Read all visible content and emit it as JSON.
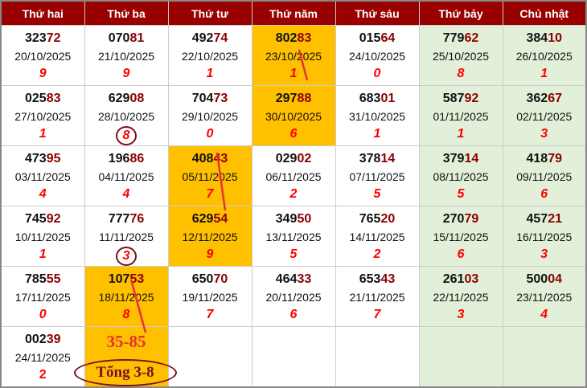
{
  "headers": [
    "Thứ hai",
    "Thứ ba",
    "Thứ tư",
    "Thứ năm",
    "Thứ sáu",
    "Thứ bảy",
    "Chủ nhật"
  ],
  "colors": {
    "header": "#990000",
    "highlight": "#ffc000",
    "weekend": "#e2f0d9",
    "sum": "#ff0000",
    "tail": "#8b0000"
  },
  "rows": [
    [
      {
        "h": "323",
        "t": "72",
        "d": "20/10/2025",
        "s": "9"
      },
      {
        "h": "070",
        "t": "81",
        "d": "21/10/2025",
        "s": "9"
      },
      {
        "h": "492",
        "t": "74",
        "d": "22/10/2025",
        "s": "1"
      },
      {
        "h": "802",
        "t": "83",
        "d": "23/10/2025",
        "s": "1",
        "hl": true
      },
      {
        "h": "015",
        "t": "64",
        "d": "24/10/2025",
        "s": "0"
      },
      {
        "h": "779",
        "t": "62",
        "d": "25/10/2025",
        "s": "8"
      },
      {
        "h": "384",
        "t": "10",
        "d": "26/10/2025",
        "s": "1"
      }
    ],
    [
      {
        "h": "025",
        "t": "83",
        "d": "27/10/2025",
        "s": "1"
      },
      {
        "h": "629",
        "t": "08",
        "d": "28/10/2025",
        "s": "8",
        "c": true
      },
      {
        "h": "704",
        "t": "73",
        "d": "29/10/2025",
        "s": "0"
      },
      {
        "h": "297",
        "t": "88",
        "d": "30/10/2025",
        "s": "6",
        "hl": true
      },
      {
        "h": "683",
        "t": "01",
        "d": "31/10/2025",
        "s": "1"
      },
      {
        "h": "587",
        "t": "92",
        "d": "01/11/2025",
        "s": "1"
      },
      {
        "h": "362",
        "t": "67",
        "d": "02/11/2025",
        "s": "3"
      }
    ],
    [
      {
        "h": "473",
        "t": "95",
        "d": "03/11/2025",
        "s": "4"
      },
      {
        "h": "196",
        "t": "86",
        "d": "04/11/2025",
        "s": "4"
      },
      {
        "h": "408",
        "t": "43",
        "d": "05/11/2025",
        "s": "7",
        "hl": true
      },
      {
        "h": "029",
        "t": "02",
        "d": "06/11/2025",
        "s": "2"
      },
      {
        "h": "378",
        "t": "14",
        "d": "07/11/2025",
        "s": "5"
      },
      {
        "h": "379",
        "t": "14",
        "d": "08/11/2025",
        "s": "5"
      },
      {
        "h": "418",
        "t": "79",
        "d": "09/11/2025",
        "s": "6"
      }
    ],
    [
      {
        "h": "745",
        "t": "92",
        "d": "10/11/2025",
        "s": "1"
      },
      {
        "h": "777",
        "t": "76",
        "d": "11/11/2025",
        "s": "3",
        "c": true
      },
      {
        "h": "629",
        "t": "54",
        "d": "12/11/2025",
        "s": "9",
        "hl": true
      },
      {
        "h": "349",
        "t": "50",
        "d": "13/11/2025",
        "s": "5"
      },
      {
        "h": "765",
        "t": "20",
        "d": "14/11/2025",
        "s": "2"
      },
      {
        "h": "270",
        "t": "79",
        "d": "15/11/2025",
        "s": "6"
      },
      {
        "h": "457",
        "t": "21",
        "d": "16/11/2025",
        "s": "3"
      }
    ],
    [
      {
        "h": "785",
        "t": "55",
        "d": "17/11/2025",
        "s": "0"
      },
      {
        "h": "107",
        "t": "53",
        "d": "18/11/2025",
        "s": "8",
        "hl": true
      },
      {
        "h": "650",
        "t": "70",
        "d": "19/11/2025",
        "s": "7"
      },
      {
        "h": "464",
        "t": "33",
        "d": "20/11/2025",
        "s": "6"
      },
      {
        "h": "653",
        "t": "43",
        "d": "21/11/2025",
        "s": "7"
      },
      {
        "h": "261",
        "t": "03",
        "d": "22/11/2025",
        "s": "3"
      },
      {
        "h": "500",
        "t": "04",
        "d": "23/11/2025",
        "s": "4"
      }
    ],
    [
      {
        "h": "002",
        "t": "39",
        "d": "24/11/2025",
        "s": "2",
        "n": true
      }
    ]
  ],
  "prediction": {
    "pair": "35-85",
    "total": "Tổng 3-8"
  }
}
